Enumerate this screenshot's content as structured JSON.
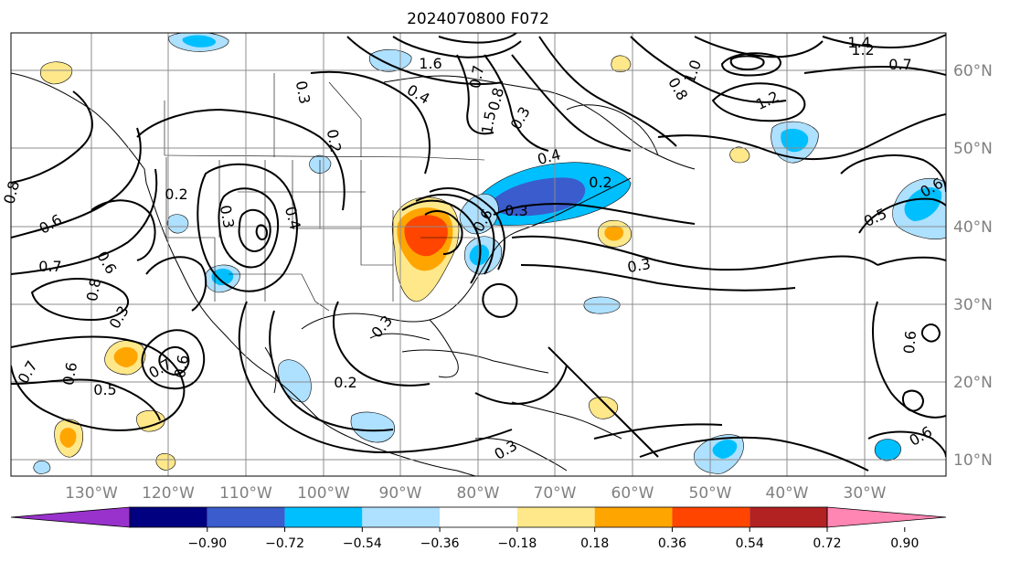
{
  "title": "2024070800 F072",
  "map": {
    "lon_labels": [
      "130°W",
      "120°W",
      "110°W",
      "100°W",
      "90°W",
      "80°W",
      "70°W",
      "60°W",
      "50°W",
      "40°W",
      "30°W"
    ],
    "lat_labels": [
      "60°N",
      "50°N",
      "40°N",
      "30°N",
      "20°N",
      "10°N"
    ],
    "gridline_color": "#8c8c8c",
    "axis_label_color": "#808080"
  },
  "contour_labels": [
    "0.8",
    "0.6",
    "0.7",
    "0.8",
    "0.6",
    "0.3",
    "0.7",
    "0.6",
    "0.5",
    "0.2",
    "0.3",
    "0.4",
    "0.2",
    "0.3",
    "0.4",
    "1.6",
    "0.7",
    "0.8",
    "1.5",
    "0.3",
    "0.4",
    "0.2",
    "0.6",
    "0.3",
    "0.3",
    "0.3",
    "0.2",
    "0.3",
    "0.8",
    "1.0",
    "1.4",
    "1.2",
    "0.7",
    "1.2",
    "0.6",
    "0.5",
    "0.6",
    "0.6",
    "0.7",
    "0.6"
  ],
  "colorbar": {
    "ticks": [
      "−0.90",
      "−0.72",
      "−0.54",
      "−0.36",
      "−0.18",
      "0.18",
      "0.36",
      "0.54",
      "0.72",
      "0.90"
    ],
    "colors": [
      "#9932cc",
      "#000080",
      "#3a5ccc",
      "#00bfff",
      "#aee0ff",
      "#ffffff",
      "#ffe88a",
      "#ffa500",
      "#ff4500",
      "#b22222",
      "#ff85b3"
    ],
    "extend": "both"
  }
}
